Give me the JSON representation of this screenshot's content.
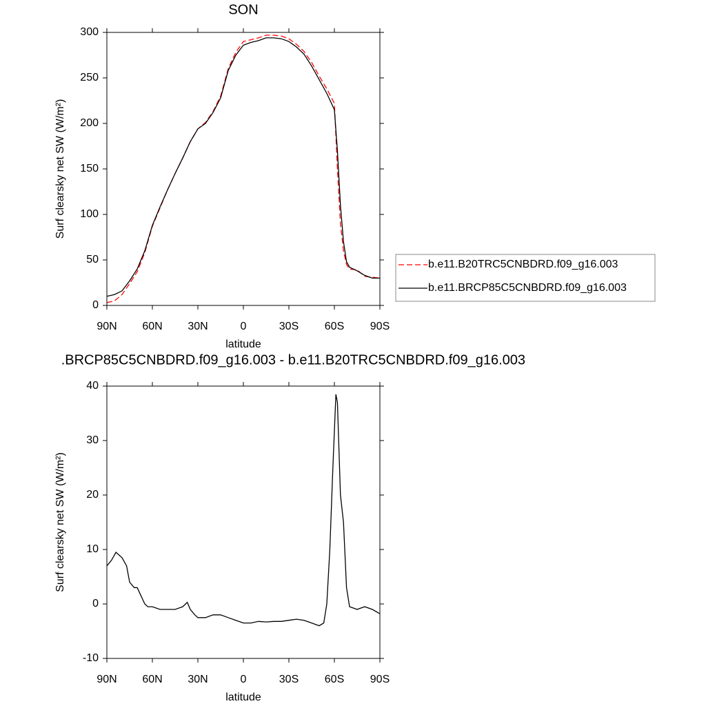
{
  "chart_data": [
    {
      "type": "line",
      "title": "SON",
      "x_label": "latitude",
      "y_label": "Surf clearsky net SW (W/m²)",
      "xlim": [
        90,
        -90
      ],
      "ylim": [
        0,
        300
      ],
      "xticks": [
        {
          "value": 90,
          "label": "90N"
        },
        {
          "value": 60,
          "label": "60N"
        },
        {
          "value": 30,
          "label": "30N"
        },
        0,
        {
          "value": -30,
          "label": "30S"
        },
        {
          "value": -60,
          "label": "60S"
        },
        {
          "value": -90,
          "label": "90S"
        }
      ],
      "yticks": [
        0,
        50,
        100,
        150,
        200,
        250,
        300
      ],
      "x": [
        90,
        85,
        80,
        75,
        70,
        65,
        60,
        55,
        50,
        45,
        40,
        35,
        30,
        25,
        20,
        15,
        10,
        5,
        0,
        -5,
        -10,
        -15,
        -20,
        -25,
        -30,
        -35,
        -40,
        -45,
        -50,
        -55,
        -60,
        -62,
        -64,
        -66,
        -68,
        -70,
        -75,
        -80,
        -85,
        -90
      ],
      "series": [
        {
          "name": "b.e11.B20TRC5CNBDRD.f09_g16.003",
          "color": "#ff0000",
          "linestyle": "dashed",
          "values": [
            3,
            5,
            12,
            24,
            37,
            58,
            87,
            107,
            127,
            145,
            162,
            180,
            194,
            201,
            213,
            230,
            260,
            278,
            290,
            292,
            294,
            297,
            297,
            296,
            293,
            287,
            279,
            267,
            252,
            238,
            222,
            150,
            90,
            60,
            45,
            40,
            39,
            32,
            31,
            30
          ]
        },
        {
          "name": "b.e11.BRCP85C5CNBDRD.f09_g16.003",
          "color": "#000000",
          "linestyle": "solid",
          "values": [
            10,
            12,
            16,
            27,
            40,
            60,
            88,
            108,
            127,
            145,
            162,
            180,
            194,
            200,
            212,
            228,
            258,
            275,
            286,
            289,
            291,
            294,
            294,
            293,
            290,
            284,
            276,
            263,
            248,
            233,
            215,
            170,
            110,
            70,
            48,
            42,
            38,
            33,
            30,
            30
          ]
        }
      ]
    },
    {
      "type": "line",
      "title": ".BRCP85C5CNBDRD.f09_g16.003 - b.e11.B20TRC5CNBDRD.f09_g16.003",
      "x_label": "latitude",
      "y_label": "Surf clearsky net SW (W/m²)",
      "xlim": [
        90,
        -90
      ],
      "ylim": [
        -10,
        40
      ],
      "xticks": [
        {
          "value": 90,
          "label": "90N"
        },
        {
          "value": 60,
          "label": "60N"
        },
        {
          "value": 30,
          "label": "30N"
        },
        0,
        {
          "value": -30,
          "label": "30S"
        },
        {
          "value": -60,
          "label": "60S"
        },
        {
          "value": -90,
          "label": "90S"
        }
      ],
      "yticks": [
        -10,
        0,
        10,
        20,
        30,
        40
      ],
      "x": [
        90,
        87,
        84,
        80,
        77,
        75,
        72,
        70,
        65,
        63,
        60,
        55,
        50,
        45,
        40,
        37,
        35,
        32,
        30,
        25,
        20,
        15,
        10,
        5,
        0,
        -5,
        -10,
        -15,
        -20,
        -25,
        -30,
        -35,
        -40,
        -45,
        -50,
        -53,
        -55,
        -57,
        -59,
        -61,
        -62,
        -64,
        -66,
        -68,
        -70,
        -75,
        -80,
        -85,
        -90
      ],
      "series": [
        {
          "color": "#000000",
          "linestyle": "solid",
          "values": [
            7,
            8,
            9.5,
            8.5,
            7,
            4,
            3,
            3,
            0,
            -0.5,
            -0.5,
            -1,
            -1,
            -1,
            -0.5,
            0.3,
            -1,
            -2,
            -2.5,
            -2.5,
            -2,
            -2,
            -2.5,
            -3,
            -3.5,
            -3.5,
            -3.2,
            -3.3,
            -3.2,
            -3.2,
            -3,
            -2.8,
            -3,
            -3.5,
            -4,
            -3.5,
            0,
            10,
            25,
            38.5,
            37,
            20,
            15,
            3,
            -0.5,
            -1,
            -0.5,
            -1,
            -1.8
          ]
        }
      ]
    }
  ]
}
